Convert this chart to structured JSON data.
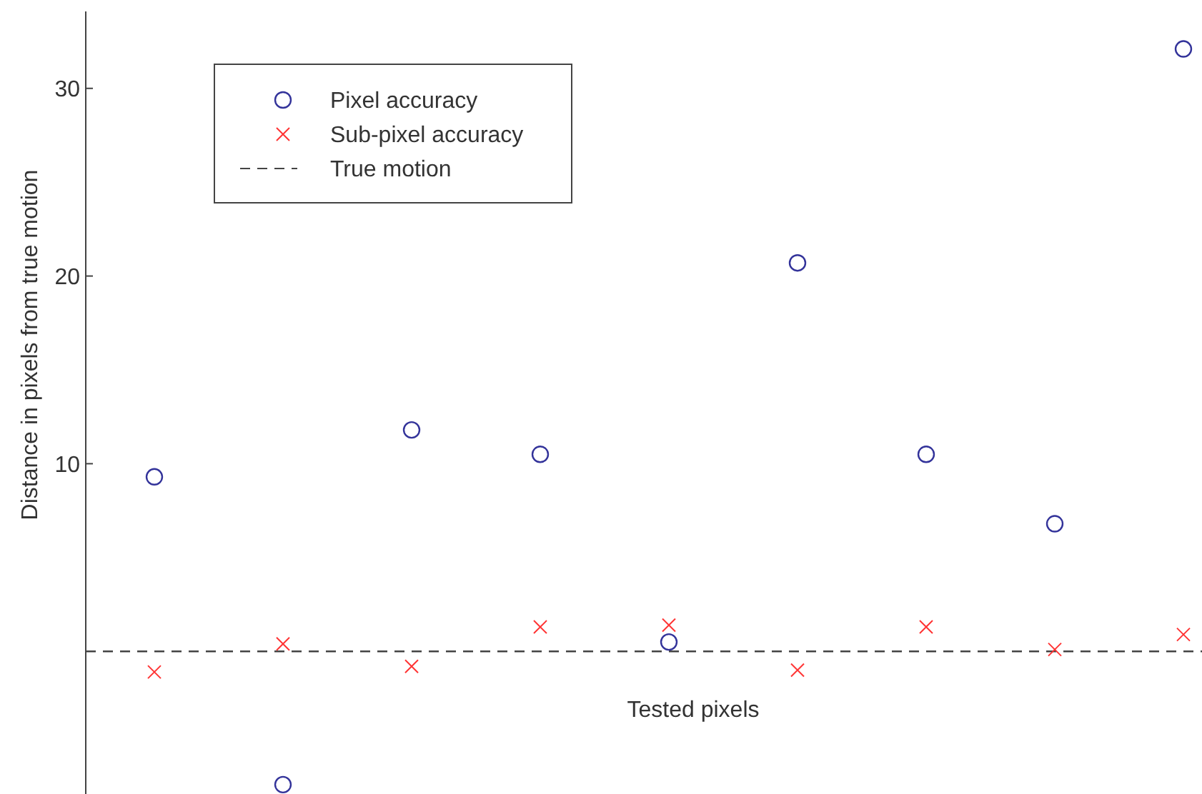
{
  "chart_data": {
    "type": "scatter",
    "xlabel": "Tested pixels",
    "ylabel": "Distance in pixels from true motion",
    "categories": [
      null,
      null,
      null,
      null,
      null,
      null,
      null,
      null,
      null
    ],
    "series": [
      {
        "name": "Pixel accuracy",
        "color": "#33339a",
        "marker": "circle",
        "values": [
          9.3,
          -7.1,
          11.8,
          10.5,
          0.5,
          20.7,
          10.5,
          6.8,
          32.1
        ]
      },
      {
        "name": "Sub-pixel accuracy",
        "color": "#ff3333",
        "marker": "cross",
        "values": [
          -1.1,
          0.4,
          -0.8,
          1.3,
          1.4,
          -1.0,
          1.3,
          0.1,
          0.9
        ]
      }
    ],
    "ref_lines": [
      {
        "axis": "y",
        "value": 0,
        "label": "True motion",
        "color": "#444444",
        "line_style": "dashed"
      }
    ],
    "ylim": [
      -7.6,
      34.1
    ],
    "yticks": [
      10,
      20,
      30
    ],
    "grid": false,
    "legend": "top left"
  }
}
